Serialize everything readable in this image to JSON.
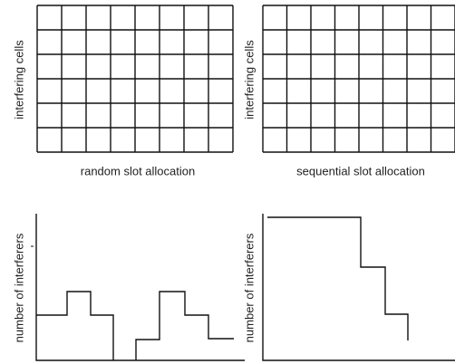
{
  "panels": [
    {
      "y_label": "interfering cells",
      "caption": "random slot allocation"
    },
    {
      "y_label": "interfering cells",
      "caption": "sequential slot allocation"
    },
    {
      "y_label": "number of interferers"
    },
    {
      "y_label": "number of interferers"
    }
  ]
}
